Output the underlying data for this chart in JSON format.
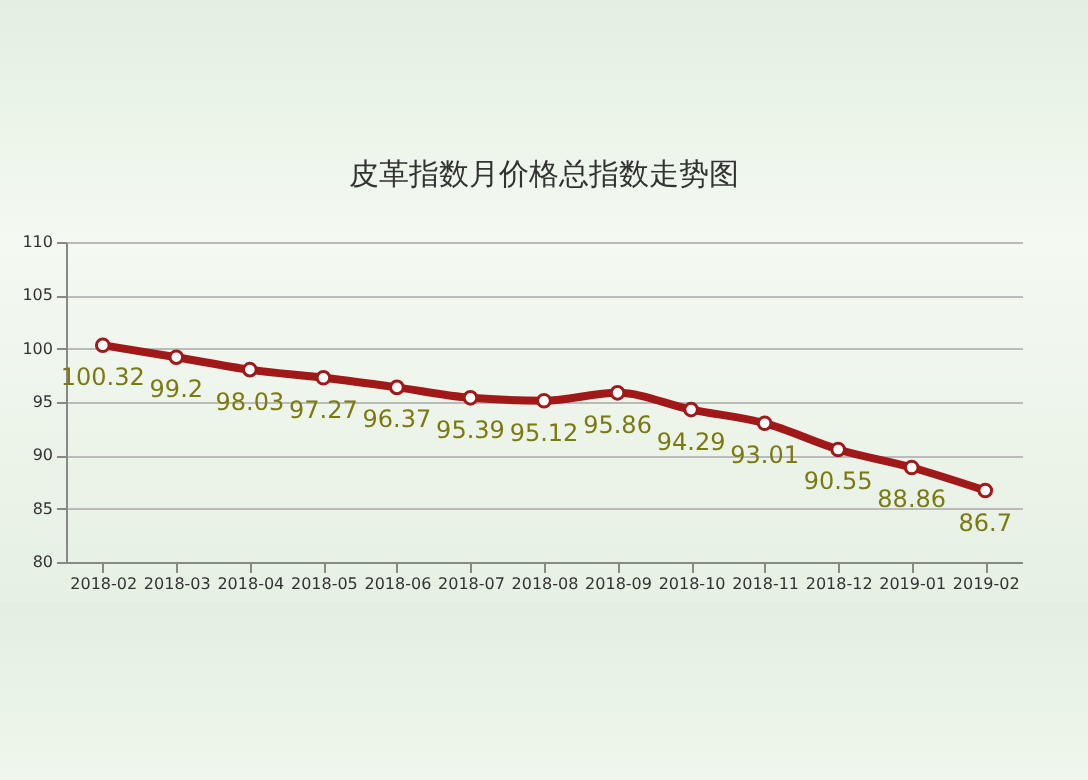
{
  "chart_data": {
    "type": "line",
    "title": "皮革指数月价格总指数走势图",
    "categories": [
      "2018-02",
      "2018-03",
      "2018-04",
      "2018-05",
      "2018-06",
      "2018-07",
      "2018-08",
      "2018-09",
      "2018-10",
      "2018-11",
      "2018-12",
      "2019-01",
      "2019-02"
    ],
    "series": [
      {
        "color": "#a01818",
        "values": [
          100.32,
          99.2,
          98.03,
          97.27,
          96.37,
          95.39,
          95.12,
          95.86,
          94.29,
          93.01,
          90.55,
          88.86,
          86.7
        ]
      }
    ],
    "ylim": [
      80,
      110
    ],
    "yticks": [
      80,
      85,
      90,
      95,
      100,
      105,
      110
    ],
    "grid": "y",
    "marker": "circle",
    "line_style": "solid",
    "data_labels": true
  }
}
